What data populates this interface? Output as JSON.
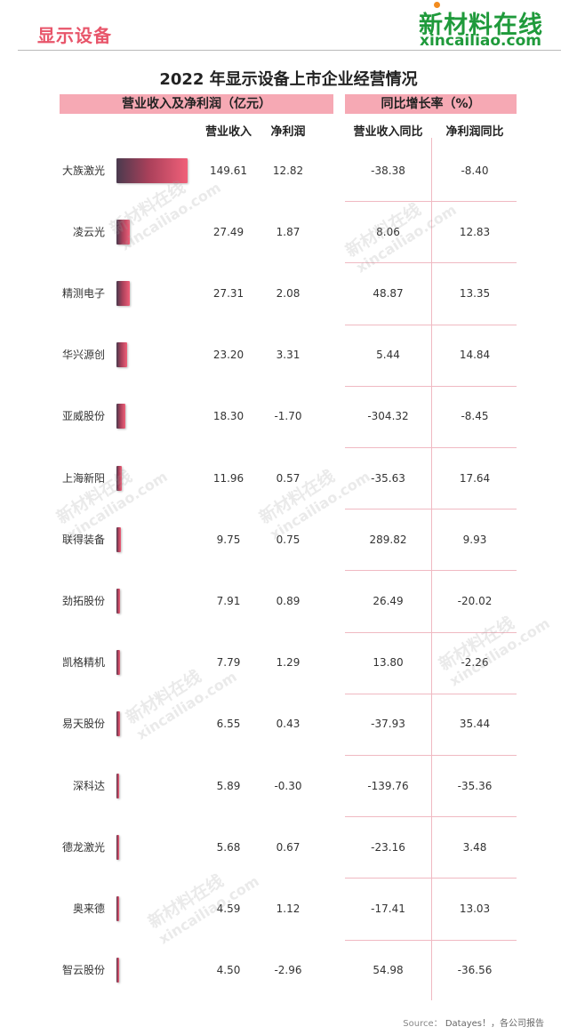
{
  "header": {
    "section_title": "显示设备",
    "logo_text": "新材料在线",
    "logo_url": "xincailiao.com"
  },
  "title": "2022 年显示设备上市企业经营情况",
  "bands": {
    "left": "营业收入及净利润（亿元）",
    "right": "同比增长率（%）"
  },
  "column_headers": {
    "revenue": "营业收入",
    "net_profit": "净利润",
    "revenue_yoy": "营业收入同比",
    "profit_yoy": "净利润同比"
  },
  "chart_data": {
    "type": "table",
    "title": "2022 年显示设备上市企业经营情况",
    "categories": [
      "大族激光",
      "凌云光",
      "精测电子",
      "华兴源创",
      "亚威股份",
      "上海新阳",
      "联得装备",
      "劲拓股份",
      "凯格精机",
      "易天股份",
      "深科达",
      "德龙激光",
      "奥来德",
      "智云股份"
    ],
    "revenue": [
      "149.61",
      "27.49",
      "27.31",
      "23.20",
      "18.30",
      "11.96",
      "9.75",
      "7.91",
      "7.79",
      "6.55",
      "5.89",
      "5.68",
      "4.59",
      "4.50"
    ],
    "net_profit": [
      "12.82",
      "1.87",
      "2.08",
      "3.31",
      "-1.70",
      "0.57",
      "0.75",
      "0.89",
      "1.29",
      "0.43",
      "-0.30",
      "0.67",
      "1.12",
      "-2.96"
    ],
    "revenue_yoy": [
      "-38.38",
      "8.06",
      "48.87",
      "5.44",
      "-304.32",
      "-35.63",
      "289.82",
      "26.49",
      "13.80",
      "-37.93",
      "-139.76",
      "-23.16",
      "-17.41",
      "54.98"
    ],
    "profit_yoy": [
      "-8.40",
      "12.83",
      "13.35",
      "14.84",
      "-8.45",
      "17.64",
      "9.93",
      "-20.02",
      "-2.26",
      "35.44",
      "-35.36",
      "3.48",
      "13.03",
      "-36.56"
    ],
    "bar_series": "revenue",
    "bar_color": "#f06079"
  },
  "source": {
    "label": "Source：",
    "text": "Datayes！，各公司报告"
  },
  "watermark": {
    "text": "新材料在线",
    "url": "xincailiao.com"
  }
}
